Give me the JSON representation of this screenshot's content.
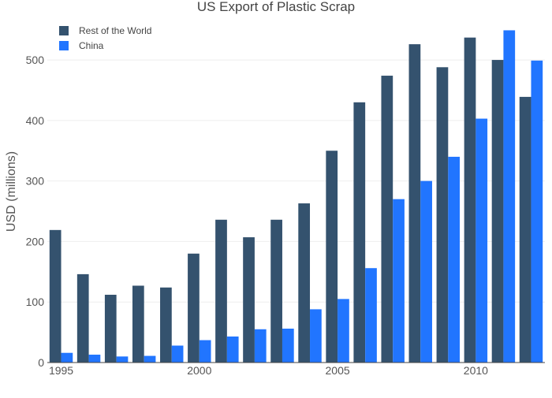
{
  "chart_data": {
    "type": "bar",
    "title": "US Export of Plastic Scrap",
    "ylabel": "USD (millions)",
    "xlabel": "",
    "x": [
      1995,
      1996,
      1997,
      1998,
      1999,
      2000,
      2001,
      2002,
      2003,
      2004,
      2005,
      2006,
      2007,
      2008,
      2009,
      2010,
      2011,
      2012
    ],
    "xticks": [
      1995,
      2000,
      2005,
      2010
    ],
    "yticks": [
      0,
      100,
      200,
      300,
      400,
      500
    ],
    "ylim": [
      0,
      560
    ],
    "xlim": [
      1994.5,
      2012.5
    ],
    "grid": true,
    "legend_position": "top-left",
    "series": [
      {
        "name": "Rest of the World",
        "color": "#34526e",
        "values": [
          219,
          146,
          112,
          127,
          124,
          180,
          236,
          207,
          236,
          263,
          350,
          430,
          474,
          526,
          488,
          537,
          500,
          439
        ]
      },
      {
        "name": "China",
        "color": "#2175ff",
        "values": [
          16,
          13,
          10,
          11,
          28,
          37,
          43,
          55,
          56,
          88,
          105,
          156,
          270,
          300,
          340,
          403,
          549,
          499
        ]
      }
    ]
  }
}
